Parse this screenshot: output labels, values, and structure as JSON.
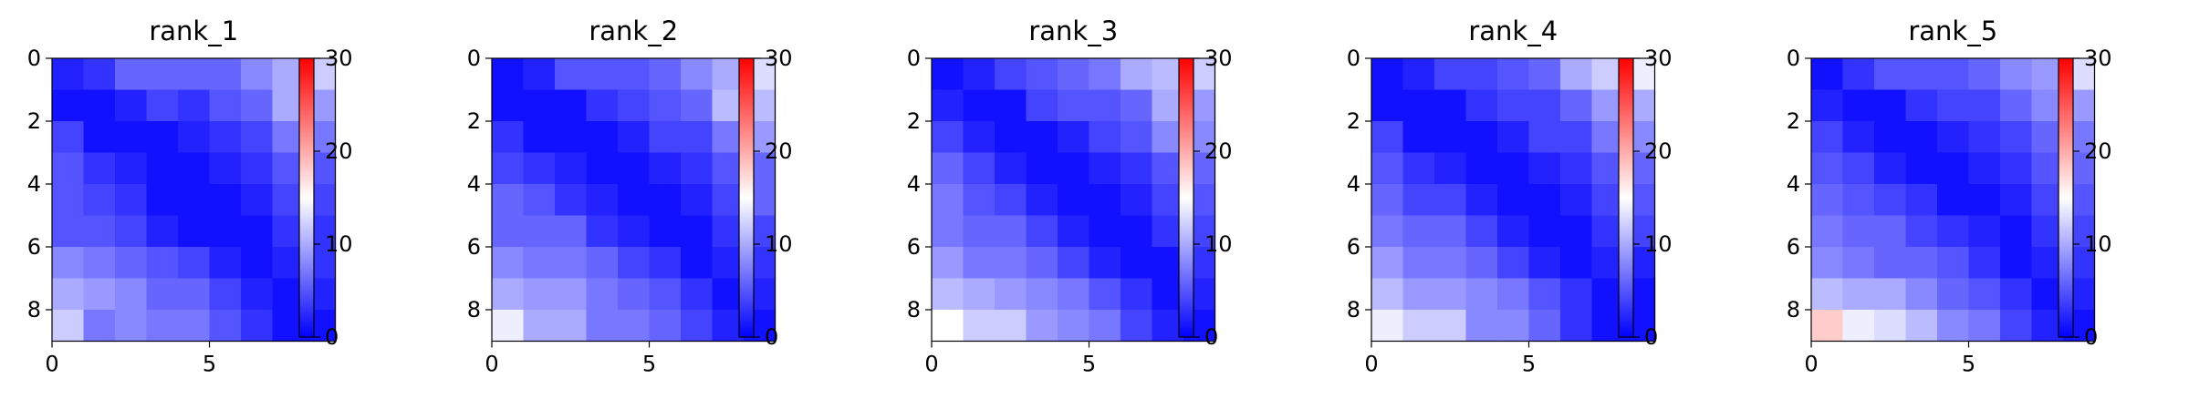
{
  "chart_data": [
    {
      "type": "heatmap",
      "title": "rank_1",
      "xticks": [
        "0",
        "5"
      ],
      "yticks": [
        "0",
        "2",
        "4",
        "6",
        "8"
      ],
      "colorbar": {
        "ticks": [
          "0",
          "10",
          "20",
          "30"
        ],
        "vmin": 0,
        "vmax": 30,
        "colormap": "bwr"
      },
      "values": [
        [
          2,
          3,
          6,
          6,
          6,
          6,
          8,
          10,
          12
        ],
        [
          1,
          1,
          2,
          4,
          3,
          5,
          6,
          10,
          9
        ],
        [
          4,
          1,
          1,
          1,
          2,
          3,
          4,
          7,
          7
        ],
        [
          5,
          3,
          2,
          1,
          1,
          2,
          3,
          5,
          5
        ],
        [
          5,
          4,
          3,
          1,
          1,
          1,
          2,
          4,
          4
        ],
        [
          5,
          5,
          4,
          2,
          1,
          1,
          1,
          3,
          3
        ],
        [
          8,
          7,
          6,
          5,
          4,
          2,
          1,
          2,
          3
        ],
        [
          10,
          9,
          8,
          6,
          6,
          4,
          2,
          1,
          2
        ],
        [
          12,
          7,
          8,
          7,
          7,
          5,
          3,
          1,
          1
        ]
      ]
    },
    {
      "type": "heatmap",
      "title": "rank_2",
      "xticks": [
        "0",
        "5"
      ],
      "yticks": [
        "0",
        "2",
        "4",
        "6",
        "8"
      ],
      "colorbar": {
        "ticks": [
          "0",
          "10",
          "20",
          "30"
        ],
        "vmin": 0,
        "vmax": 30,
        "colormap": "bwr"
      },
      "values": [
        [
          1,
          2,
          5,
          5,
          5,
          6,
          8,
          10,
          13
        ],
        [
          1,
          1,
          1,
          3,
          4,
          5,
          6,
          11,
          11
        ],
        [
          3,
          1,
          1,
          1,
          2,
          4,
          4,
          7,
          9
        ],
        [
          4,
          3,
          2,
          1,
          1,
          2,
          3,
          5,
          6
        ],
        [
          6,
          5,
          3,
          2,
          1,
          1,
          2,
          4,
          6
        ],
        [
          6,
          6,
          6,
          3,
          2,
          1,
          1,
          3,
          4
        ],
        [
          8,
          7,
          7,
          6,
          4,
          3,
          1,
          2,
          3
        ],
        [
          10,
          9,
          9,
          7,
          6,
          5,
          3,
          1,
          2
        ],
        [
          14,
          10,
          10,
          7,
          7,
          6,
          4,
          2,
          1
        ]
      ]
    },
    {
      "type": "heatmap",
      "title": "rank_3",
      "xticks": [
        "0",
        "5"
      ],
      "yticks": [
        "0",
        "2",
        "4",
        "6",
        "8"
      ],
      "colorbar": {
        "ticks": [
          "0",
          "10",
          "20",
          "30"
        ],
        "vmin": 0,
        "vmax": 30,
        "colormap": "bwr"
      },
      "values": [
        [
          1,
          2,
          4,
          5,
          6,
          7,
          10,
          11,
          12
        ],
        [
          2,
          1,
          1,
          4,
          5,
          5,
          6,
          10,
          9
        ],
        [
          4,
          2,
          1,
          1,
          2,
          4,
          5,
          8,
          8
        ],
        [
          6,
          4,
          2,
          1,
          1,
          2,
          3,
          5,
          6
        ],
        [
          7,
          5,
          4,
          2,
          1,
          1,
          2,
          4,
          5
        ],
        [
          7,
          6,
          6,
          4,
          2,
          1,
          1,
          3,
          4
        ],
        [
          9,
          7,
          7,
          6,
          4,
          2,
          1,
          1,
          3
        ],
        [
          11,
          10,
          9,
          8,
          7,
          5,
          3,
          1,
          2
        ],
        [
          15,
          12,
          12,
          9,
          8,
          7,
          4,
          2,
          1
        ]
      ]
    },
    {
      "type": "heatmap",
      "title": "rank_4",
      "xticks": [
        "0",
        "5"
      ],
      "yticks": [
        "0",
        "2",
        "4",
        "6",
        "8"
      ],
      "colorbar": {
        "ticks": [
          "0",
          "10",
          "20",
          "30"
        ],
        "vmin": 0,
        "vmax": 30,
        "colormap": "bwr"
      },
      "values": [
        [
          1,
          2,
          4,
          4,
          5,
          6,
          10,
          12,
          14
        ],
        [
          1,
          1,
          1,
          3,
          4,
          4,
          6,
          9,
          10
        ],
        [
          4,
          1,
          1,
          1,
          2,
          4,
          4,
          7,
          8
        ],
        [
          5,
          3,
          2,
          1,
          1,
          2,
          3,
          5,
          6
        ],
        [
          6,
          4,
          4,
          2,
          1,
          1,
          2,
          4,
          5
        ],
        [
          7,
          6,
          6,
          4,
          2,
          1,
          1,
          3,
          4
        ],
        [
          9,
          7,
          7,
          6,
          4,
          2,
          1,
          2,
          2
        ],
        [
          11,
          9,
          9,
          8,
          7,
          5,
          3,
          1,
          1
        ],
        [
          14,
          12,
          12,
          8,
          8,
          6,
          3,
          1,
          1
        ]
      ]
    },
    {
      "type": "heatmap",
      "title": "rank_5",
      "xticks": [
        "0",
        "5"
      ],
      "yticks": [
        "0",
        "2",
        "4",
        "6",
        "8"
      ],
      "colorbar": {
        "ticks": [
          "0",
          "10",
          "20",
          "30"
        ],
        "vmin": 0,
        "vmax": 30,
        "colormap": "bwr"
      },
      "values": [
        [
          1,
          3,
          5,
          5,
          5,
          6,
          8,
          9,
          13
        ],
        [
          2,
          1,
          1,
          3,
          4,
          4,
          6,
          8,
          9
        ],
        [
          4,
          2,
          1,
          1,
          2,
          3,
          4,
          6,
          7
        ],
        [
          5,
          4,
          2,
          1,
          1,
          2,
          3,
          5,
          6
        ],
        [
          6,
          5,
          4,
          3,
          1,
          1,
          2,
          4,
          5
        ],
        [
          7,
          6,
          6,
          4,
          3,
          2,
          1,
          3,
          4
        ],
        [
          8,
          7,
          6,
          6,
          5,
          3,
          1,
          2,
          3
        ],
        [
          11,
          10,
          10,
          8,
          6,
          5,
          3,
          1,
          2
        ],
        [
          18,
          14,
          13,
          11,
          8,
          7,
          4,
          2,
          1
        ]
      ]
    }
  ]
}
